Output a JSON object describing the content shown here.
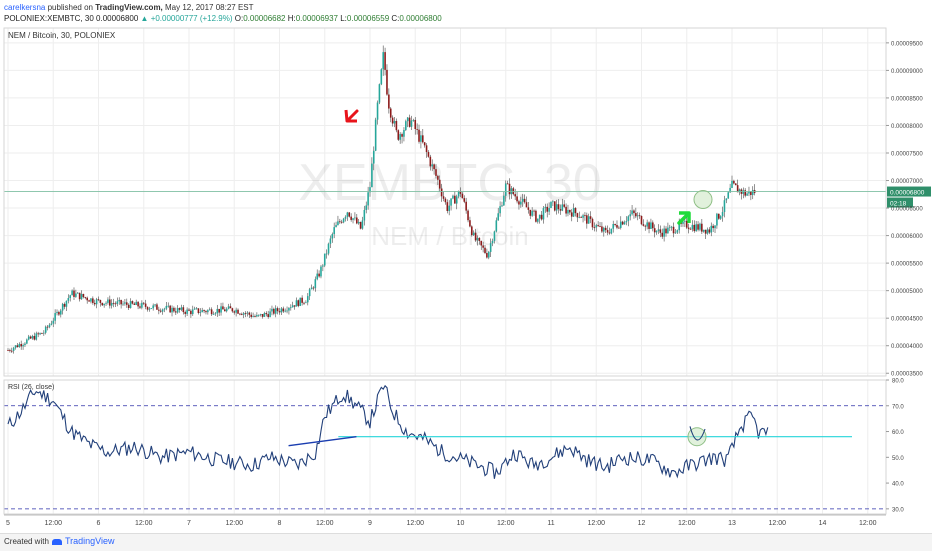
{
  "header": {
    "user": "carelkersna",
    "published_prefix": "published on",
    "site": "TradingView.com,",
    "date": "May 12, 2017 08:27 EST",
    "symbol_line": "POLONIEX:XEMBTC, 30",
    "price": "0.00006800",
    "change": "▲ +0.00000777 (+12.9%)",
    "open_label": "O:",
    "open": "0.00006682",
    "high_label": "H:",
    "high": "0.00006937",
    "low_label": "L:",
    "low": "0.00006559",
    "close_label": "C:",
    "close": "0.00006800"
  },
  "main_pane": {
    "legend": "NEM / Bitcoin, 30, POLONIEX",
    "watermark_symbol": "XEMBTC, 30",
    "watermark_name": "NEM / Bitcoin",
    "price_tag": "0.00006800",
    "countdown_tag": "02:18"
  },
  "rsi_pane": {
    "legend": "RSI (26, close)"
  },
  "footer": {
    "created_with": "Created with",
    "brand": "TradingView"
  },
  "colors": {
    "up": "#26a69a",
    "down": "#8b1a1a",
    "rsi_line": "#22407a",
    "level_line": "#2a2fa8",
    "support_line": "#26d4d9",
    "trend_line": "#1a3db0",
    "price_line": "#7fbfa3",
    "red_arrow": "#e8141b",
    "green_arrow": "#1fdb3a"
  },
  "chart_data": [
    {
      "type": "candlestick",
      "title": "NEM / Bitcoin, 30, POLONIEX",
      "x": [
        "5",
        "12:00",
        "6",
        "12:00",
        "7",
        "12:00",
        "8",
        "12:00",
        "9",
        "12:00",
        "10",
        "12:00",
        "11",
        "12:00",
        "12",
        "12:00",
        "13",
        "12:00",
        "14",
        "12:00"
      ],
      "y_ticks": [
        "0.00009500",
        "0.00009000",
        "0.00008500",
        "0.00008000",
        "0.00007500",
        "0.00007000",
        "0.00006500",
        "0.00006000",
        "0.00005500",
        "0.00005000",
        "0.00004500",
        "0.00004000",
        "0.00003500"
      ],
      "ylim": [
        3.45e-05,
        9.77e-05
      ],
      "close_path": [
        [
          0,
          3.92e-05
        ],
        [
          0.4,
          4.25e-05
        ],
        [
          0.7,
          4.95e-05
        ],
        [
          1.0,
          4.8e-05
        ],
        [
          1.5,
          4.72e-05
        ],
        [
          2.0,
          4.62e-05
        ],
        [
          2.5,
          4.66e-05
        ],
        [
          2.75,
          4.52e-05
        ],
        [
          3.0,
          4.65e-05
        ],
        [
          3.3,
          4.85e-05
        ],
        [
          3.45,
          5.35e-05
        ],
        [
          3.6,
          6.1e-05
        ],
        [
          3.75,
          6.45e-05
        ],
        [
          3.9,
          6.12e-05
        ],
        [
          4.0,
          6.9e-05
        ],
        [
          4.08,
          8.3e-05
        ],
        [
          4.15,
          9.3e-05
        ],
        [
          4.2,
          8.45e-05
        ],
        [
          4.3,
          7.8e-05
        ],
        [
          4.45,
          8.1e-05
        ],
        [
          4.6,
          7.6e-05
        ],
        [
          4.75,
          7e-05
        ],
        [
          4.85,
          6.5e-05
        ],
        [
          5.0,
          6.8e-05
        ],
        [
          5.15,
          5.95e-05
        ],
        [
          5.3,
          5.65e-05
        ],
        [
          5.5,
          6.9e-05
        ],
        [
          5.65,
          6.65e-05
        ],
        [
          5.85,
          6.3e-05
        ],
        [
          6.0,
          6.55e-05
        ],
        [
          6.3,
          6.4e-05
        ],
        [
          6.6,
          6.05e-05
        ],
        [
          6.9,
          6.4e-05
        ],
        [
          7.2,
          6.05e-05
        ],
        [
          7.5,
          6.2e-05
        ],
        [
          7.75,
          6.1e-05
        ],
        [
          7.9,
          6.48e-05
        ],
        [
          8.0,
          6.9e-05
        ],
        [
          8.15,
          6.76e-05
        ],
        [
          8.25,
          6.8e-05
        ]
      ],
      "current_price": 6.8e-05,
      "annotations": [
        "red arrow near the peak",
        "green arrow near the latest candles",
        "circle at current price"
      ]
    },
    {
      "type": "line",
      "title": "RSI (26, close)",
      "y_ticks": [
        "80.0",
        "70.0",
        "60.0",
        "50.0",
        "40.0",
        "30.0"
      ],
      "ylim": [
        28,
        80
      ],
      "levels": [
        70,
        30
      ],
      "support_level": 58,
      "rsi_path": [
        [
          0,
          62
        ],
        [
          0.15,
          68
        ],
        [
          0.3,
          76
        ],
        [
          0.5,
          72
        ],
        [
          0.7,
          60
        ],
        [
          0.9,
          55
        ],
        [
          1.1,
          52
        ],
        [
          1.4,
          54
        ],
        [
          1.7,
          50
        ],
        [
          2.0,
          52
        ],
        [
          2.3,
          49
        ],
        [
          2.7,
          47
        ],
        [
          2.9,
          50
        ],
        [
          3.2,
          47
        ],
        [
          3.4,
          52
        ],
        [
          3.5,
          66
        ],
        [
          3.7,
          75
        ],
        [
          3.85,
          70
        ],
        [
          4.0,
          64
        ],
        [
          4.15,
          78
        ],
        [
          4.25,
          68
        ],
        [
          4.4,
          60
        ],
        [
          4.6,
          57
        ],
        [
          4.8,
          52
        ],
        [
          5.1,
          48
        ],
        [
          5.4,
          44
        ],
        [
          5.6,
          52
        ],
        [
          5.8,
          47
        ],
        [
          6.0,
          50
        ],
        [
          6.2,
          54
        ],
        [
          6.4,
          49
        ],
        [
          6.6,
          46
        ],
        [
          6.8,
          50
        ],
        [
          7.1,
          49
        ],
        [
          7.35,
          44
        ],
        [
          7.55,
          47
        ],
        [
          7.8,
          50
        ],
        [
          7.95,
          49
        ],
        [
          8.1,
          62
        ],
        [
          8.22,
          66
        ],
        [
          8.3,
          59
        ],
        [
          8.4,
          60
        ]
      ],
      "trend_line": [
        [
          3.1,
          54.5
        ],
        [
          3.85,
          58
        ]
      ]
    }
  ]
}
